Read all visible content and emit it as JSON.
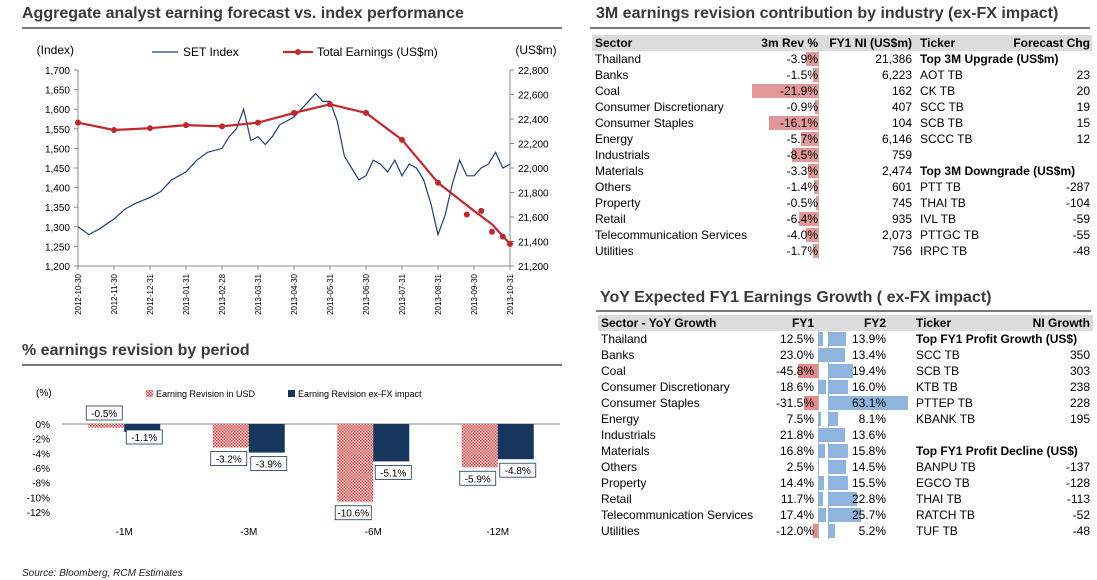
{
  "panels": {
    "p1_title": "Aggregate analyst earning forecast vs. index performance",
    "p2_title": "% earnings revision by period",
    "p3_title": "3M earnings revision contribution by industry (ex-FX impact)",
    "p4_title": "YoY Expected FY1 Earnings Growth ( ex-FX impact)"
  },
  "source": "Source: Bloomberg, RCM Estimates",
  "chart_data": [
    {
      "type": "line",
      "title": "Aggregate analyst earning forecast vs. index performance",
      "left_axis_label": "(Index)",
      "right_axis_label": "(US$m)",
      "left_ylim": [
        1200,
        1700
      ],
      "right_ylim": [
        21200,
        22800
      ],
      "left_ticks": [
        "1,700",
        "1,650",
        "1,600",
        "1,550",
        "1,500",
        "1,450",
        "1,400",
        "1,350",
        "1,300",
        "1,250",
        "1,200"
      ],
      "right_ticks": [
        "22,800",
        "22,600",
        "22,400",
        "22,200",
        "22,000",
        "21,800",
        "21,600",
        "21,400",
        "21,200"
      ],
      "x_ticks": [
        "2012-10-30",
        "2012-11-30",
        "2012-12-31",
        "2013-01-31",
        "2013-02-28",
        "2013-03-31",
        "2013-04-30",
        "2013-05-31",
        "2013-06-30",
        "2013-07-31",
        "2013-08-31",
        "2013-09-30",
        "2013-10-31"
      ],
      "series": [
        {
          "name": "SET Index",
          "color": "#1f3f73",
          "values": [
            [
              0,
              1300
            ],
            [
              0.3,
              1280
            ],
            [
              0.6,
              1295
            ],
            [
              1.0,
              1320
            ],
            [
              1.3,
              1345
            ],
            [
              1.6,
              1360
            ],
            [
              2.0,
              1375
            ],
            [
              2.3,
              1390
            ],
            [
              2.6,
              1420
            ],
            [
              3.0,
              1440
            ],
            [
              3.3,
              1470
            ],
            [
              3.6,
              1490
            ],
            [
              4.0,
              1500
            ],
            [
              4.2,
              1530
            ],
            [
              4.4,
              1550
            ],
            [
              4.6,
              1600
            ],
            [
              4.8,
              1520
            ],
            [
              5.0,
              1530
            ],
            [
              5.2,
              1510
            ],
            [
              5.4,
              1530
            ],
            [
              5.6,
              1560
            ],
            [
              6.0,
              1580
            ],
            [
              6.3,
              1610
            ],
            [
              6.6,
              1640
            ],
            [
              6.8,
              1620
            ],
            [
              7.0,
              1620
            ],
            [
              7.2,
              1570
            ],
            [
              7.4,
              1480
            ],
            [
              7.6,
              1450
            ],
            [
              7.8,
              1420
            ],
            [
              8.0,
              1430
            ],
            [
              8.2,
              1470
            ],
            [
              8.4,
              1460
            ],
            [
              8.6,
              1440
            ],
            [
              8.8,
              1470
            ],
            [
              9.0,
              1430
            ],
            [
              9.2,
              1460
            ],
            [
              9.4,
              1450
            ],
            [
              9.6,
              1420
            ],
            [
              9.8,
              1360
            ],
            [
              10.0,
              1280
            ],
            [
              10.2,
              1330
            ],
            [
              10.4,
              1410
            ],
            [
              10.6,
              1470
            ],
            [
              10.8,
              1430
            ],
            [
              11.0,
              1430
            ],
            [
              11.2,
              1450
            ],
            [
              11.4,
              1460
            ],
            [
              11.6,
              1490
            ],
            [
              11.8,
              1450
            ],
            [
              12.0,
              1460
            ]
          ]
        },
        {
          "name": "Total Earnings (US$m)",
          "color": "#c0282d",
          "values": [
            [
              0,
              22370
            ],
            [
              1,
              22310
            ],
            [
              2,
              22325
            ],
            [
              3,
              22350
            ],
            [
              4,
              22340
            ],
            [
              5,
              22370
            ],
            [
              6,
              22450
            ],
            [
              7,
              22520
            ],
            [
              8,
              22450
            ],
            [
              9,
              22230
            ],
            [
              10,
              21880
            ],
            [
              11,
              21650
            ],
            [
              11.5,
              21540
            ],
            [
              12,
              21380
            ]
          ],
          "markers": [
            [
              0,
              22370
            ],
            [
              1,
              22310
            ],
            [
              2,
              22325
            ],
            [
              3,
              22350
            ],
            [
              4,
              22340
            ],
            [
              5,
              22370
            ],
            [
              6,
              22450
            ],
            [
              7,
              22520
            ],
            [
              8,
              22450
            ],
            [
              9,
              22230
            ],
            [
              10,
              21880
            ],
            [
              10.8,
              21620
            ],
            [
              11.2,
              21650
            ],
            [
              11.5,
              21480
            ],
            [
              11.8,
              21440
            ],
            [
              12,
              21380
            ]
          ]
        }
      ]
    },
    {
      "type": "bar",
      "title": "% earnings revision by period",
      "ylabel": "(%)",
      "ylim": [
        -12,
        0
      ],
      "yticks": [
        "0%",
        "-2%",
        "-4%",
        "-6%",
        "-8%",
        "-10%",
        "-12%"
      ],
      "categories": [
        "-1M",
        "-3M",
        "-6M",
        "-12M"
      ],
      "series": [
        {
          "name": "Earning Revision in USD",
          "values": [
            -0.5,
            -3.2,
            -10.6,
            -5.9
          ],
          "labels": [
            "-0.5%",
            "-3.2%",
            "-10.6%",
            "-5.9%"
          ]
        },
        {
          "name": "Earning Revision ex-FX impact",
          "values": [
            -1.1,
            -3.9,
            -5.1,
            -4.8
          ],
          "labels": [
            "-1.1%",
            "-3.9%",
            "-5.1%",
            "-4.8%"
          ]
        }
      ]
    }
  ],
  "table3": {
    "headers": {
      "sector": "Sector",
      "rev": "3m Rev %",
      "ni": "FY1 NI (US$m)",
      "ticker": "Ticker",
      "chg": "Forecast Chg"
    },
    "rows": [
      {
        "sector": "Thailand",
        "rev": "-3.9%",
        "v": -3.9,
        "ni": "21,386"
      },
      {
        "sector": "Banks",
        "rev": "-1.5%",
        "v": -1.5,
        "ni": "6,223"
      },
      {
        "sector": "Coal",
        "rev": "-21.9%",
        "v": -21.9,
        "ni": "162"
      },
      {
        "sector": "Consumer Discretionary",
        "rev": "-0.9%",
        "v": -0.9,
        "ni": "407"
      },
      {
        "sector": "Consumer Staples",
        "rev": "-16.1%",
        "v": -16.1,
        "ni": "104"
      },
      {
        "sector": "Energy",
        "rev": "-5.7%",
        "v": -5.7,
        "ni": "6,146"
      },
      {
        "sector": "Industrials",
        "rev": "-8.5%",
        "v": -8.5,
        "ni": "759"
      },
      {
        "sector": "Materials",
        "rev": "-3.3%",
        "v": -3.3,
        "ni": "2,474"
      },
      {
        "sector": "Others",
        "rev": "-1.4%",
        "v": -1.4,
        "ni": "601"
      },
      {
        "sector": "Property",
        "rev": "-0.5%",
        "v": -0.5,
        "ni": "745"
      },
      {
        "sector": "Retail",
        "rev": "-6.4%",
        "v": -6.4,
        "ni": "935"
      },
      {
        "sector": "Telecommunication Services",
        "rev": "-4.0%",
        "v": -4.0,
        "ni": "2,073"
      },
      {
        "sector": "Utilities",
        "rev": "-1.7%",
        "v": -1.7,
        "ni": "756"
      }
    ],
    "upgrade_title": "Top 3M Upgrade (US$m)",
    "upgrades": [
      {
        "ticker": "AOT TB",
        "value": "23"
      },
      {
        "ticker": "CK TB",
        "value": "20"
      },
      {
        "ticker": "SCC TB",
        "value": "19"
      },
      {
        "ticker": "SCB TB",
        "value": "15"
      },
      {
        "ticker": "SCCC TB",
        "value": "12"
      }
    ],
    "downgrade_title": "Top 3M Downgrade (US$m)",
    "downgrades": [
      {
        "ticker": "PTT TB",
        "value": "-287"
      },
      {
        "ticker": "THAI TB",
        "value": "-104"
      },
      {
        "ticker": "IVL TB",
        "value": "-59"
      },
      {
        "ticker": "PTTGC TB",
        "value": "-55"
      },
      {
        "ticker": "IRPC TB",
        "value": "-48"
      }
    ]
  },
  "table4": {
    "headers": {
      "sector": "Sector - YoY Growth",
      "fy1": "FY1",
      "fy2": "FY2",
      "ticker": "Ticker",
      "growth": "NI Growth"
    },
    "rows": [
      {
        "sector": "Thailand",
        "fy1": "12.5%",
        "v1": 12.5,
        "fy2": "13.9%",
        "v2": 13.9
      },
      {
        "sector": "Banks",
        "fy1": "23.0%",
        "v1": 23.0,
        "fy2": "13.4%",
        "v2": 13.4
      },
      {
        "sector": "Coal",
        "fy1": "-45.8%",
        "v1": -45.8,
        "fy2": "19.4%",
        "v2": 19.4
      },
      {
        "sector": "Consumer Discretionary",
        "fy1": "18.6%",
        "v1": 18.6,
        "fy2": "16.0%",
        "v2": 16.0
      },
      {
        "sector": "Consumer Staples",
        "fy1": "-31.5%",
        "v1": -31.5,
        "fy2": "63.1%",
        "v2": 63.1
      },
      {
        "sector": "Energy",
        "fy1": "7.5%",
        "v1": 7.5,
        "fy2": "8.1%",
        "v2": 8.1
      },
      {
        "sector": "Industrials",
        "fy1": "21.8%",
        "v1": 21.8,
        "fy2": "13.6%",
        "v2": 13.6
      },
      {
        "sector": "Materials",
        "fy1": "16.8%",
        "v1": 16.8,
        "fy2": "15.8%",
        "v2": 15.8
      },
      {
        "sector": "Others",
        "fy1": "2.5%",
        "v1": 2.5,
        "fy2": "14.5%",
        "v2": 14.5
      },
      {
        "sector": "Property",
        "fy1": "14.4%",
        "v1": 14.4,
        "fy2": "15.5%",
        "v2": 15.5
      },
      {
        "sector": "Retail",
        "fy1": "11.7%",
        "v1": 11.7,
        "fy2": "22.8%",
        "v2": 22.8
      },
      {
        "sector": "Telecommunication Services",
        "fy1": "17.4%",
        "v1": 17.4,
        "fy2": "25.7%",
        "v2": 25.7
      },
      {
        "sector": "Utilities",
        "fy1": "-12.0%",
        "v1": -12.0,
        "fy2": "5.2%",
        "v2": 5.2
      }
    ],
    "growth_title": "Top FY1 Profit Growth (US$)",
    "growth": [
      {
        "ticker": "SCC TB",
        "value": "350"
      },
      {
        "ticker": "SCB TB",
        "value": "303"
      },
      {
        "ticker": "KTB TB",
        "value": "238"
      },
      {
        "ticker": "PTTEP TB",
        "value": "228"
      },
      {
        "ticker": "KBANK TB",
        "value": "195"
      }
    ],
    "decline_title": "Top FY1 Profit Decline (US$)",
    "decline": [
      {
        "ticker": "BANPU TB",
        "value": "-137"
      },
      {
        "ticker": "EGCO TB",
        "value": "-128"
      },
      {
        "ticker": "THAI TB",
        "value": "-113"
      },
      {
        "ticker": "RATCH TB",
        "value": "-52"
      },
      {
        "ticker": "TUF TB",
        "value": "-48"
      }
    ]
  }
}
